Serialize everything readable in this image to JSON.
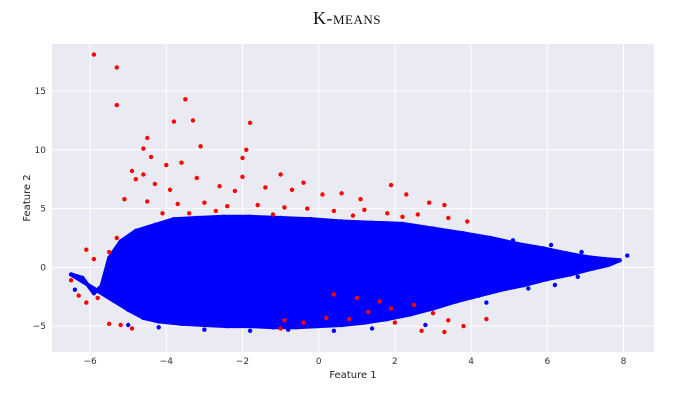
{
  "chart_data": {
    "type": "scatter",
    "title": "K-means",
    "xlabel": "Feature 1",
    "ylabel": "Feature 2",
    "xlim": [
      -7.0,
      8.8
    ],
    "ylim": [
      -7.2,
      19.0
    ],
    "xticks": [
      -6,
      -4,
      -2,
      0,
      2,
      4,
      6,
      8
    ],
    "yticks": [
      -5,
      0,
      5,
      10,
      15
    ],
    "grid": true,
    "background": "#eaeaf2",
    "series": [
      {
        "color": "#0000ff",
        "points": [
          [
            -6.4,
            -1.9
          ],
          [
            -6.5,
            -0.6
          ],
          [
            -6.2,
            -0.9
          ],
          [
            -5.9,
            -2.2
          ],
          [
            -5.7,
            -1.6
          ],
          [
            -5.5,
            0.8
          ],
          [
            -5.2,
            2.2
          ],
          [
            -4.8,
            3.1
          ],
          [
            -4.3,
            3.6
          ],
          [
            -3.8,
            4.1
          ],
          [
            -3.2,
            4.2
          ],
          [
            -2.5,
            4.3
          ],
          [
            -1.8,
            4.3
          ],
          [
            -1.0,
            4.2
          ],
          [
            -0.2,
            4.1
          ],
          [
            0.6,
            3.9
          ],
          [
            1.4,
            3.8
          ],
          [
            2.2,
            3.7
          ],
          [
            3.0,
            3.3
          ],
          [
            3.8,
            2.9
          ],
          [
            4.5,
            2.5
          ],
          [
            5.2,
            2.0
          ],
          [
            5.9,
            1.6
          ],
          [
            6.5,
            1.2
          ],
          [
            7.0,
            0.9
          ],
          [
            7.5,
            0.7
          ],
          [
            7.9,
            0.6
          ],
          [
            8.1,
            1.0
          ],
          [
            7.6,
            0.2
          ],
          [
            7.2,
            -0.1
          ],
          [
            6.6,
            -0.6
          ],
          [
            6.0,
            -1.0
          ],
          [
            5.4,
            -1.5
          ],
          [
            4.8,
            -1.9
          ],
          [
            4.2,
            -2.4
          ],
          [
            3.6,
            -2.9
          ],
          [
            3.0,
            -3.5
          ],
          [
            2.4,
            -4.0
          ],
          [
            1.8,
            -4.4
          ],
          [
            1.2,
            -4.7
          ],
          [
            0.6,
            -4.9
          ],
          [
            0.0,
            -5.0
          ],
          [
            -0.6,
            -5.1
          ],
          [
            -1.2,
            -5.1
          ],
          [
            -1.8,
            -5.0
          ],
          [
            -2.4,
            -5.0
          ],
          [
            -3.0,
            -4.9
          ],
          [
            -3.6,
            -4.8
          ],
          [
            -4.2,
            -4.6
          ],
          [
            -4.6,
            -4.3
          ],
          [
            -5.0,
            -3.6
          ],
          [
            -5.4,
            -2.8
          ],
          [
            -5.0,
            -4.9
          ],
          [
            -4.2,
            -5.1
          ],
          [
            -3.0,
            -5.3
          ],
          [
            -1.8,
            -5.4
          ],
          [
            -0.8,
            -5.3
          ],
          [
            0.4,
            -5.4
          ],
          [
            1.4,
            -5.2
          ],
          [
            2.8,
            -4.9
          ],
          [
            5.5,
            -1.8
          ],
          [
            6.2,
            -1.5
          ],
          [
            6.8,
            -0.8
          ],
          [
            4.4,
            -3.0
          ],
          [
            5.1,
            2.3
          ],
          [
            6.1,
            1.9
          ],
          [
            6.9,
            1.3
          ],
          [
            0.0,
            0.0
          ],
          [
            -2.0,
            1.0
          ],
          [
            1.0,
            -1.0
          ],
          [
            3.0,
            0.5
          ],
          [
            -3.5,
            -1.0
          ],
          [
            2.0,
            2.0
          ],
          [
            -1.0,
            -2.5
          ],
          [
            4.0,
            -0.5
          ],
          [
            -4.5,
            0.5
          ]
        ]
      },
      {
        "color": "#ff0000",
        "points": [
          [
            -5.9,
            18.1
          ],
          [
            -5.3,
            17.0
          ],
          [
            -5.3,
            13.8
          ],
          [
            -3.5,
            14.3
          ],
          [
            -3.8,
            12.4
          ],
          [
            -3.3,
            12.5
          ],
          [
            -1.8,
            12.3
          ],
          [
            -4.5,
            11.0
          ],
          [
            -4.6,
            10.1
          ],
          [
            -3.1,
            10.3
          ],
          [
            -1.9,
            10.0
          ],
          [
            -2.0,
            9.3
          ],
          [
            -4.4,
            9.4
          ],
          [
            -4.0,
            8.7
          ],
          [
            -3.6,
            8.9
          ],
          [
            -4.9,
            8.2
          ],
          [
            -4.6,
            7.9
          ],
          [
            -3.2,
            7.6
          ],
          [
            -2.0,
            7.7
          ],
          [
            -1.0,
            7.9
          ],
          [
            -0.4,
            7.2
          ],
          [
            -4.8,
            7.5
          ],
          [
            -4.3,
            7.1
          ],
          [
            -3.9,
            6.6
          ],
          [
            -2.6,
            6.9
          ],
          [
            -2.2,
            6.5
          ],
          [
            -1.4,
            6.8
          ],
          [
            -0.7,
            6.6
          ],
          [
            0.1,
            6.2
          ],
          [
            0.6,
            6.3
          ],
          [
            1.1,
            5.8
          ],
          [
            1.9,
            7.0
          ],
          [
            2.3,
            6.2
          ],
          [
            2.9,
            5.5
          ],
          [
            3.3,
            5.3
          ],
          [
            -5.1,
            5.8
          ],
          [
            -4.5,
            5.6
          ],
          [
            -3.7,
            5.4
          ],
          [
            -3.0,
            5.5
          ],
          [
            -2.4,
            5.2
          ],
          [
            -1.6,
            5.3
          ],
          [
            -0.9,
            5.1
          ],
          [
            -0.3,
            5.0
          ],
          [
            0.4,
            4.8
          ],
          [
            1.2,
            4.9
          ],
          [
            1.8,
            4.6
          ],
          [
            2.6,
            4.5
          ],
          [
            3.4,
            4.2
          ],
          [
            3.9,
            3.9
          ],
          [
            -4.1,
            4.6
          ],
          [
            -3.4,
            4.6
          ],
          [
            -2.7,
            4.8
          ],
          [
            -1.2,
            4.5
          ],
          [
            0.9,
            4.4
          ],
          [
            2.2,
            4.3
          ],
          [
            -5.3,
            2.5
          ],
          [
            -5.5,
            1.3
          ],
          [
            -5.9,
            0.7
          ],
          [
            -6.1,
            1.5
          ],
          [
            -6.5,
            -1.1
          ],
          [
            -6.3,
            -2.4
          ],
          [
            -6.1,
            -3.0
          ],
          [
            -5.8,
            -2.6
          ],
          [
            -5.5,
            -4.8
          ],
          [
            -5.2,
            -4.9
          ],
          [
            -4.9,
            -5.2
          ],
          [
            -1.0,
            -5.2
          ],
          [
            -0.4,
            -4.7
          ],
          [
            0.2,
            -4.3
          ],
          [
            0.8,
            -4.4
          ],
          [
            1.3,
            -3.8
          ],
          [
            1.9,
            -3.5
          ],
          [
            2.5,
            -3.2
          ],
          [
            3.0,
            -3.9
          ],
          [
            3.4,
            -4.5
          ],
          [
            3.8,
            -5.0
          ],
          [
            4.4,
            -4.4
          ],
          [
            0.4,
            -2.3
          ],
          [
            1.0,
            -2.6
          ],
          [
            1.6,
            -2.9
          ],
          [
            2.0,
            -4.7
          ],
          [
            2.7,
            -5.4
          ],
          [
            3.3,
            -5.5
          ],
          [
            -0.9,
            -4.5
          ]
        ]
      }
    ]
  }
}
